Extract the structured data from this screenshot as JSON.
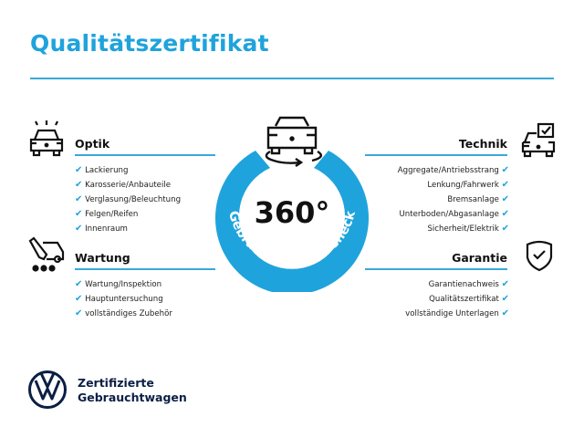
{
  "title": "Qualitätszertifikat",
  "colors": {
    "accent": "#1fa3dc",
    "brand_dark": "#0b1f45"
  },
  "center": {
    "big": "360°",
    "ring_text": "Gebrauchtwagen-Check",
    "icon": "car-rotate-icon"
  },
  "sections": {
    "optik": {
      "title": "Optik",
      "icon": "car-lights-icon",
      "items": [
        "Lackierung",
        "Karosserie/Anbauteile",
        "Verglasung/Beleuchtung",
        "Felgen/Reifen",
        "Innenraum"
      ]
    },
    "wartung": {
      "title": "Wartung",
      "icon": "service-tools-icon",
      "items": [
        "Wartung/Inspektion",
        "Hauptuntersuchung",
        "vollständiges Zubehör"
      ]
    },
    "technik": {
      "title": "Technik",
      "icon": "car-checkbox-icon",
      "items": [
        "Aggregate/Antriebsstrang",
        "Lenkung/Fahrwerk",
        "Bremsanlage",
        "Unterboden/Abgasanlage",
        "Sicherheit/Elektrik"
      ]
    },
    "garantie": {
      "title": "Garantie",
      "icon": "shield-check-icon",
      "items": [
        "Garantienachweis",
        "Qualitätszertifikat",
        "vollständige Unterlagen"
      ]
    }
  },
  "footer": {
    "line1": "Zertifizierte",
    "line2": "Gebrauchtwagen"
  }
}
